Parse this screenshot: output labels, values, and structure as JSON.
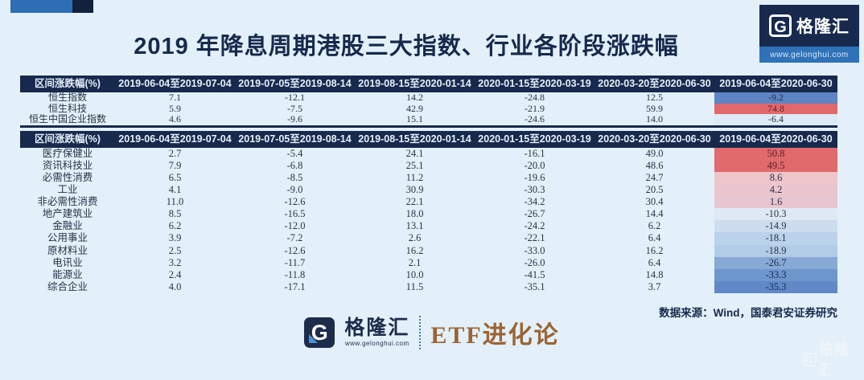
{
  "title": "2019 年降息周期港股三大指数、行业各阶段涨跌幅",
  "top_logo": {
    "g": "G",
    "name": "格隆汇",
    "url": "www.gelonghui.com"
  },
  "columns": [
    "区间涨跌幅(%)",
    "2019-06-04至2019-07-04",
    "2019-07-05至2019-08-14",
    "2019-08-15至2020-01-14",
    "2020-01-15至2020-03-19",
    "2020-03-20至2020-06-30",
    "2019-06-04至2020-06-30"
  ],
  "index_table": {
    "rows": [
      {
        "label": "恒生指数",
        "values": [
          "7.1",
          "-12.1",
          "14.2",
          "-24.8",
          "12.5"
        ],
        "total": "-9.2",
        "total_bg": "#5d85c3",
        "total_color": "#1c2b4e"
      },
      {
        "label": "恒生科技",
        "values": [
          "5.9",
          "-7.5",
          "42.9",
          "-21.9",
          "59.9"
        ],
        "total": "74.8",
        "total_bg": "#e2696b",
        "total_color": "#5c1f27"
      },
      {
        "label": "恒生中国企业指数",
        "values": [
          "4.6",
          "-9.6",
          "15.1",
          "-24.6",
          "14.0"
        ],
        "total": "-6.4",
        "total_bg": "#ddebf6",
        "total_color": "#283249"
      }
    ]
  },
  "sector_table": {
    "rows": [
      {
        "label": "医疗保健业",
        "values": [
          "2.7",
          "-5.4",
          "24.1",
          "-16.1",
          "49.0"
        ],
        "total": "50.8",
        "total_bg": "#e06a6c",
        "total_color": "#5c1f27"
      },
      {
        "label": "资讯科技业",
        "values": [
          "7.9",
          "-6.8",
          "25.1",
          "-20.0",
          "48.6"
        ],
        "total": "49.5",
        "total_bg": "#e06a6c",
        "total_color": "#5c1f27"
      },
      {
        "label": "必需性消费",
        "values": [
          "6.5",
          "-8.5",
          "11.2",
          "-19.6",
          "24.7"
        ],
        "total": "8.6",
        "total_bg": "#edc5cb",
        "total_color": "#283249"
      },
      {
        "label": "工业",
        "values": [
          "4.1",
          "-9.0",
          "30.9",
          "-30.3",
          "20.5"
        ],
        "total": "4.2",
        "total_bg": "#eac5ce",
        "total_color": "#283249"
      },
      {
        "label": "非必需性消费",
        "values": [
          "11.0",
          "-12.6",
          "22.1",
          "-34.2",
          "30.4"
        ],
        "total": "1.6",
        "total_bg": "#e8c6d1",
        "total_color": "#283249"
      },
      {
        "label": "地产建筑业",
        "values": [
          "8.5",
          "-16.5",
          "18.0",
          "-26.7",
          "14.4"
        ],
        "total": "-10.3",
        "total_bg": "#dfe9f3",
        "total_color": "#283249"
      },
      {
        "label": "金融业",
        "values": [
          "6.2",
          "-12.0",
          "13.1",
          "-24.2",
          "6.2"
        ],
        "total": "-14.9",
        "total_bg": "#cdddef",
        "total_color": "#283249"
      },
      {
        "label": "公用事业",
        "values": [
          "3.9",
          "-7.2",
          "2.6",
          "-22.1",
          "6.4"
        ],
        "total": "-18.1",
        "total_bg": "#bad2ea",
        "total_color": "#283249"
      },
      {
        "label": "原材料业",
        "values": [
          "2.5",
          "-12.6",
          "16.2",
          "-33.0",
          "16.2"
        ],
        "total": "-18.9",
        "total_bg": "#b2cce7",
        "total_color": "#283249"
      },
      {
        "label": "电讯业",
        "values": [
          "3.2",
          "-11.7",
          "2.1",
          "-26.0",
          "6.4"
        ],
        "total": "-26.7",
        "total_bg": "#87a9d6",
        "total_color": "#1c2b4e"
      },
      {
        "label": "能源业",
        "values": [
          "2.4",
          "-11.8",
          "10.0",
          "-41.5",
          "14.8"
        ],
        "total": "-33.3",
        "total_bg": "#6d96cd",
        "total_color": "#1c2b4e"
      },
      {
        "label": "综合企业",
        "values": [
          "4.0",
          "-17.1",
          "11.5",
          "-35.1",
          "3.7"
        ],
        "total": "-35.3",
        "total_bg": "#6189c7",
        "total_color": "#1c2b4e"
      }
    ]
  },
  "footer": {
    "source": "数据来源：Wind，国泰君安证券研究"
  },
  "bottom_logo": {
    "g": "G",
    "name": "格隆汇",
    "url": "www.gelonghui.com",
    "etf": "ETF进化论"
  },
  "watermark": {
    "g": "G",
    "text": "格隆汇"
  },
  "chart_data": [
    {
      "type": "table",
      "title": "2019 年降息周期港股三大指数各阶段涨跌幅(%)",
      "columns": [
        "区间涨跌幅(%)",
        "2019-06-04至2019-07-04",
        "2019-07-05至2019-08-14",
        "2019-08-15至2020-01-14",
        "2020-01-15至2020-03-19",
        "2020-03-20至2020-06-30",
        "2019-06-04至2020-06-30"
      ],
      "rows": [
        [
          "恒生指数",
          7.1,
          -12.1,
          14.2,
          -24.8,
          12.5,
          -9.2
        ],
        [
          "恒生科技",
          5.9,
          -7.5,
          42.9,
          -21.9,
          59.9,
          74.8
        ],
        [
          "恒生中国企业指数",
          4.6,
          -9.6,
          15.1,
          -24.6,
          14.0,
          -6.4
        ]
      ],
      "notes": "最后一列按涨跌幅红(涨)蓝(跌)热力着色"
    },
    {
      "type": "table",
      "title": "2019 年降息周期港股行业各阶段涨跌幅(%)",
      "columns": [
        "区间涨跌幅(%)",
        "2019-06-04至2019-07-04",
        "2019-07-05至2019-08-14",
        "2019-08-15至2020-01-14",
        "2020-01-15至2020-03-19",
        "2020-03-20至2020-06-30",
        "2019-06-04至2020-06-30"
      ],
      "rows": [
        [
          "医疗保健业",
          2.7,
          -5.4,
          24.1,
          -16.1,
          49.0,
          50.8
        ],
        [
          "资讯科技业",
          7.9,
          -6.8,
          25.1,
          -20.0,
          48.6,
          49.5
        ],
        [
          "必需性消费",
          6.5,
          -8.5,
          11.2,
          -19.6,
          24.7,
          8.6
        ],
        [
          "工业",
          4.1,
          -9.0,
          30.9,
          -30.3,
          20.5,
          4.2
        ],
        [
          "非必需性消费",
          11.0,
          -12.6,
          22.1,
          -34.2,
          30.4,
          1.6
        ],
        [
          "地产建筑业",
          8.5,
          -16.5,
          18.0,
          -26.7,
          14.4,
          -10.3
        ],
        [
          "金融业",
          6.2,
          -12.0,
          13.1,
          -24.2,
          6.2,
          -14.9
        ],
        [
          "公用事业",
          3.9,
          -7.2,
          2.6,
          -22.1,
          6.4,
          -18.1
        ],
        [
          "原材料业",
          2.5,
          -12.6,
          16.2,
          -33.0,
          16.2,
          -18.9
        ],
        [
          "电讯业",
          3.2,
          -11.7,
          2.1,
          -26.0,
          6.4,
          -26.7
        ],
        [
          "能源业",
          2.4,
          -11.8,
          10.0,
          -41.5,
          14.8,
          -33.3
        ],
        [
          "综合企业",
          4.0,
          -17.1,
          11.5,
          -35.1,
          3.7,
          -35.3
        ]
      ],
      "notes": "最后一列按涨跌幅红(涨)蓝(跌)热力着色"
    }
  ]
}
